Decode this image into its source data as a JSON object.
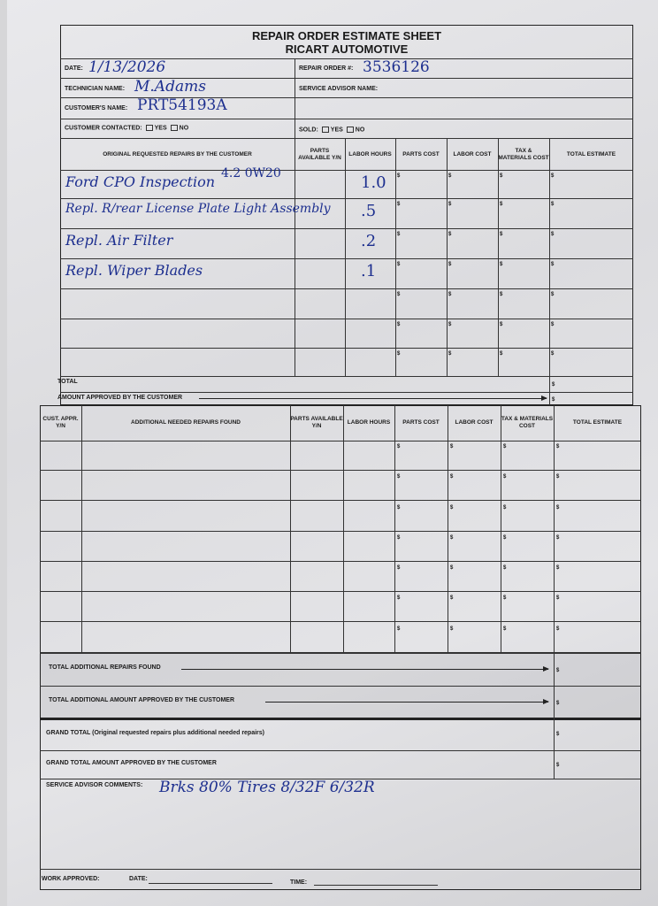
{
  "title": "REPAIR ORDER ESTIMATE SHEET",
  "company": "RICART AUTOMOTIVE",
  "header": {
    "date_label": "DATE:",
    "date_value": "1/13/2026",
    "repair_order_label": "REPAIR ORDER #:",
    "repair_order_value": "3536126",
    "technician_label": "TECHNICIAN NAME:",
    "technician_value": "M.Adams",
    "service_advisor_label": "SERVICE ADVISOR NAME:",
    "service_advisor_value": "",
    "customer_label": "CUSTOMER'S NAME:",
    "customer_value": "PRT54193A",
    "contacted_label": "CUSTOMER CONTACTED:",
    "sold_label": "SOLD:",
    "yes": "YES",
    "no": "NO"
  },
  "original_table": {
    "columns": [
      "ORIGINAL REQUESTED REPAIRS BY THE CUSTOMER",
      "PARTS AVAILABLE Y/N",
      "LABOR HOURS",
      "PARTS COST",
      "LABOR COST",
      "TAX & MATERIALS COST",
      "TOTAL ESTIMATE"
    ],
    "rows": [
      {
        "description": "Ford CPO Inspection",
        "note": "4.2 0W20",
        "labor_hours": "1.0"
      },
      {
        "description": "Repl. R/rear License Plate Light Assembly",
        "note": "",
        "labor_hours": ".5"
      },
      {
        "description": "Repl. Air Filter",
        "note": "",
        "labor_hours": ".2"
      },
      {
        "description": "Repl. Wiper Blades",
        "note": "",
        "labor_hours": ".1"
      },
      {
        "description": "",
        "note": "",
        "labor_hours": ""
      },
      {
        "description": "",
        "note": "",
        "labor_hours": ""
      },
      {
        "description": "",
        "note": "",
        "labor_hours": ""
      }
    ],
    "total_label": "TOTAL",
    "amount_approved_label": "AMOUNT APPROVED BY THE CUSTOMER",
    "currency": "$"
  },
  "additional_table": {
    "columns": [
      "CUST. APPR. Y/N",
      "ADDITIONAL NEEDED REPAIRS FOUND",
      "PARTS AVAILABLE Y/N",
      "LABOR HOURS",
      "PARTS COST",
      "LABOR COST",
      "TAX & MATERIALS COST",
      "TOTAL ESTIMATE"
    ],
    "row_count": 7
  },
  "totals": {
    "additional_found": "TOTAL ADDITIONAL REPAIRS FOUND",
    "additional_approved": "TOTAL ADDITIONAL AMOUNT APPROVED BY THE CUSTOMER",
    "grand_total": "GRAND TOTAL (Original requested repairs plus additional needed repairs)",
    "grand_approved": "GRAND TOTAL AMOUNT APPROVED BY THE CUSTOMER"
  },
  "comments": {
    "label": "SERVICE ADVISOR COMMENTS:",
    "value": "Brks 80%  Tires 8/32F 6/32R"
  },
  "footer": {
    "work_approved": "WORK APPROVED:",
    "date": "DATE:",
    "time": "TIME:"
  },
  "ink_color": "#1d2f8f"
}
